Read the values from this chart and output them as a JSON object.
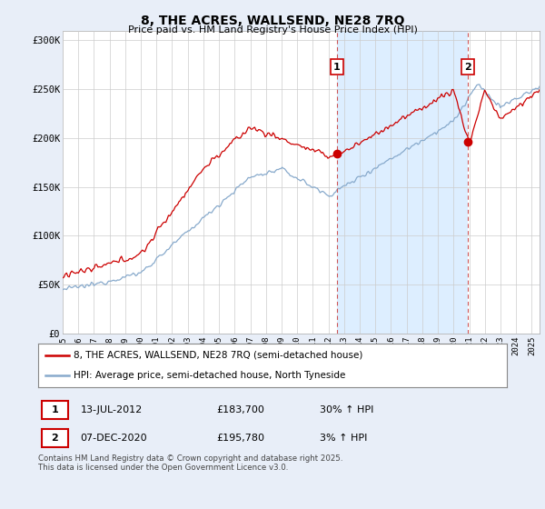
{
  "title": "8, THE ACRES, WALLSEND, NE28 7RQ",
  "subtitle": "Price paid vs. HM Land Registry's House Price Index (HPI)",
  "xlim_start": 1995.0,
  "xlim_end": 2025.5,
  "ylim": [
    0,
    310000
  ],
  "yticks": [
    0,
    50000,
    100000,
    150000,
    200000,
    250000,
    300000
  ],
  "ytick_labels": [
    "£0",
    "£50K",
    "£100K",
    "£150K",
    "£200K",
    "£250K",
    "£300K"
  ],
  "red_color": "#cc0000",
  "blue_color": "#88aacc",
  "shade_color": "#ddeeff",
  "vline_color": "#cc4444",
  "marker1_x": 2012.54,
  "marker1_y": 183700,
  "marker1_label": "1",
  "marker2_x": 2020.92,
  "marker2_y": 195780,
  "marker2_label": "2",
  "legend_line1": "8, THE ACRES, WALLSEND, NE28 7RQ (semi-detached house)",
  "legend_line2": "HPI: Average price, semi-detached house, North Tyneside",
  "table_row1": [
    "1",
    "13-JUL-2012",
    "£183,700",
    "30% ↑ HPI"
  ],
  "table_row2": [
    "2",
    "07-DEC-2020",
    "£195,780",
    "3% ↑ HPI"
  ],
  "footer": "Contains HM Land Registry data © Crown copyright and database right 2025.\nThis data is licensed under the Open Government Licence v3.0.",
  "background_color": "#e8eef8",
  "plot_bg_color": "#ffffff",
  "grid_color": "#cccccc"
}
